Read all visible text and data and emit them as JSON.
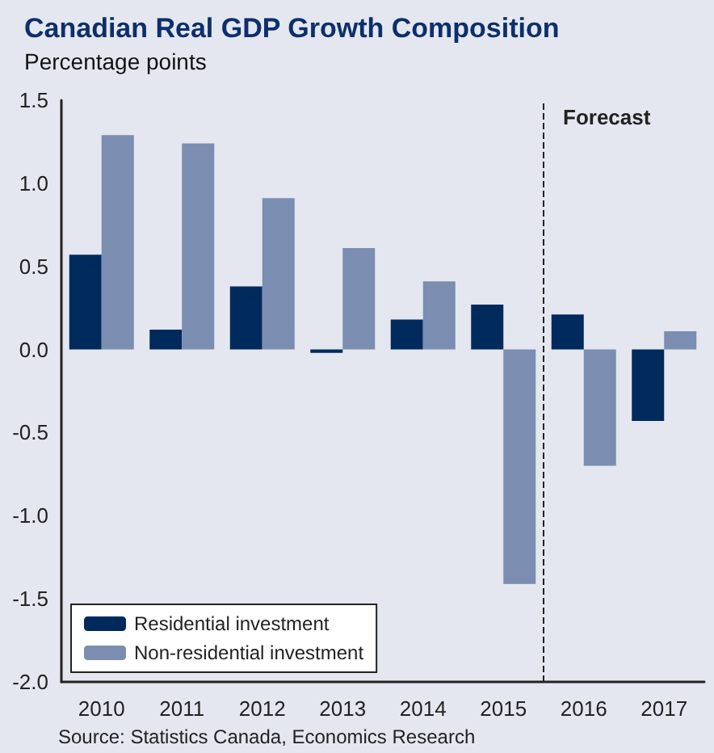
{
  "chart_data": {
    "type": "bar",
    "title": "Canadian Real GDP Growth Composition",
    "ylabel": "Percentage points",
    "x": [
      2010,
      2011,
      2012,
      2013,
      2014,
      2015,
      2016,
      2017
    ],
    "series": [
      {
        "name": "Residential investment",
        "color": "#002a5c",
        "values": [
          0.57,
          0.12,
          0.38,
          -0.02,
          0.18,
          0.27,
          0.21,
          -0.43
        ]
      },
      {
        "name": "Non-residential investment",
        "color": "#7b8db0",
        "values": [
          1.29,
          1.24,
          0.91,
          0.61,
          0.41,
          -1.41,
          -0.7,
          0.11
        ]
      }
    ],
    "xlim": [
      2009.5,
      2017.5
    ],
    "xticks": [
      2010,
      2011,
      2012,
      2013,
      2014,
      2015,
      2016,
      2017
    ],
    "ylim": [
      -2.0,
      1.5
    ],
    "yticks": [
      1.5,
      {
        "value": 1.0,
        "label": "1.0"
      },
      0.5,
      {
        "value": 0,
        "label": "0.0"
      },
      -0.5,
      {
        "value": -1.0,
        "label": "-1.0"
      },
      -1.5,
      {
        "value": -2.0,
        "label": "-2.0"
      }
    ],
    "ref_lines": [
      {
        "axis": "x",
        "value": 2015.5,
        "label": "Forecast",
        "line_style": "dashed",
        "color": "#222222"
      }
    ],
    "annotations": [
      "Source: Statistics Canada, Economics Research"
    ],
    "grid": false,
    "legend": "bottom left"
  }
}
